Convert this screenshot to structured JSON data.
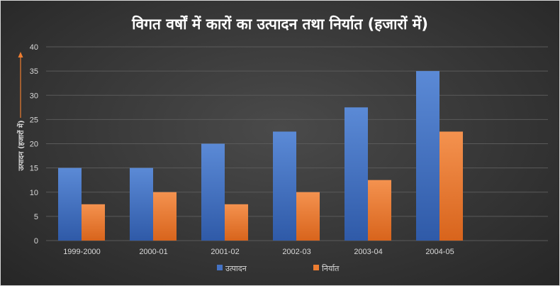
{
  "chart_data": {
    "type": "bar",
    "title": "विगत वर्षों में कारों का उत्पादन तथा निर्यात (हजारों में)",
    "xlabel": "",
    "ylabel": "उत्पादन (हजारों में)",
    "categories": [
      "1999-2000",
      "2000-01",
      "2001-02",
      "2002-03",
      "2003-04",
      "2004-05"
    ],
    "series": [
      {
        "name": "उत्पादन",
        "values": [
          15,
          15,
          20,
          22.5,
          27.5,
          35
        ],
        "color": "#4472c4"
      },
      {
        "name": "निर्यात",
        "values": [
          7.5,
          10,
          7.5,
          10,
          12.5,
          22.5
        ],
        "color": "#ed7d31"
      }
    ],
    "ylim": [
      0,
      40
    ],
    "yticks": [
      0,
      5,
      10,
      15,
      20,
      25,
      30,
      35,
      40
    ],
    "grid": true,
    "legend": "bottom",
    "axis_arrow_color": "#ed7d31"
  }
}
